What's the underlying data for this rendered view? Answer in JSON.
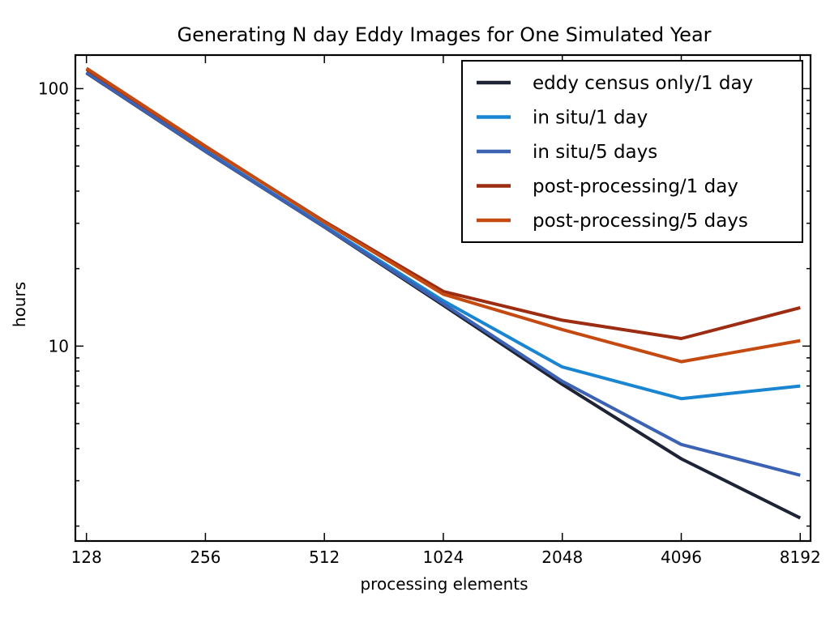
{
  "chart_data": {
    "type": "line",
    "title": "Generating N day Eddy Images for One Simulated Year",
    "xlabel": "processing elements",
    "ylabel": "hours",
    "x_scale": "log2",
    "y_scale": "log10",
    "x": [
      128,
      256,
      512,
      1024,
      2048,
      4096,
      8192
    ],
    "x_tick_labels": [
      "128",
      "256",
      "512",
      "1024",
      "2048",
      "4096",
      "8192"
    ],
    "y_ticks": [
      10,
      100
    ],
    "y_tick_labels": [
      "10",
      "100"
    ],
    "ylim": [
      1.75,
      135
    ],
    "xlim": [
      120,
      8700
    ],
    "grid": false,
    "legend_position": "top-right",
    "series": [
      {
        "name": "eddy census only/1 day",
        "color": "#1e2335",
        "values": [
          115,
          57,
          29,
          14.4,
          7.1,
          3.65,
          2.15
        ]
      },
      {
        "name": "in situ/1 day",
        "color": "#1a85d1",
        "values": [
          116,
          57.5,
          29.3,
          15.0,
          8.3,
          6.25,
          7.0
        ]
      },
      {
        "name": "in situ/5 days",
        "color": "#3c62b4",
        "values": [
          115.5,
          57.2,
          29.1,
          14.6,
          7.3,
          4.15,
          3.15
        ]
      },
      {
        "name": "post-processing/1 day",
        "color": "#9c2c12",
        "values": [
          119,
          59.5,
          30.5,
          16.3,
          12.6,
          10.7,
          14.1
        ]
      },
      {
        "name": "post-processing/5 days",
        "color": "#c44a12",
        "values": [
          120,
          59.8,
          30.3,
          15.9,
          11.6,
          8.7,
          10.5
        ]
      }
    ]
  }
}
